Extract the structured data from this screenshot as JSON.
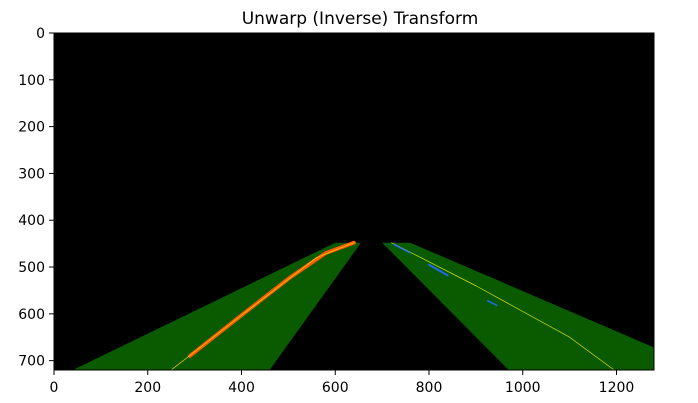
{
  "chart_data": {
    "type": "image",
    "title": "Unwarp (Inverse) Transform",
    "xlabel": "",
    "ylabel": "",
    "xlim": [
      0,
      1280
    ],
    "ylim": [
      720,
      0
    ],
    "y_inverted": true,
    "x_ticks": [
      0,
      200,
      400,
      600,
      800,
      1000,
      1200
    ],
    "y_ticks": [
      0,
      100,
      200,
      300,
      400,
      500,
      600,
      700
    ],
    "grid": false,
    "legend": "none",
    "colors": {
      "background": "#000000",
      "lane_fill": "#0a5a00",
      "left_lane_pixels": "#ff5a00",
      "right_lane_pixels": "#1e6bff",
      "right_lane_line": "#d4e000",
      "left_lane_line": "#ffd000"
    },
    "regions": [
      {
        "name": "left lane region",
        "color_key": "lane_fill",
        "polygon": [
          [
            40,
            720
          ],
          [
            600,
            448
          ],
          [
            655,
            448
          ],
          [
            460,
            720
          ]
        ]
      },
      {
        "name": "right lane region",
        "color_key": "lane_fill",
        "polygon": [
          [
            700,
            448
          ],
          [
            760,
            448
          ],
          [
            1280,
            672
          ],
          [
            1280,
            720
          ],
          [
            970,
            720
          ]
        ]
      }
    ],
    "features": [
      {
        "name": "left lane detected pixels",
        "color_key": "left_lane_pixels",
        "width": 8,
        "points": [
          [
            290,
            690
          ],
          [
            400,
            603
          ],
          [
            500,
            525
          ],
          [
            580,
            470
          ],
          [
            640,
            448
          ]
        ]
      },
      {
        "name": "left lane fit line",
        "color_key": "left_lane_line",
        "width": 1.5,
        "points": [
          [
            250,
            720
          ],
          [
            400,
            603
          ],
          [
            560,
            480
          ],
          [
            640,
            448
          ]
        ]
      },
      {
        "name": "right lane fit line",
        "color_key": "right_lane_line",
        "width": 1.5,
        "points": [
          [
            720,
            448
          ],
          [
            900,
            540
          ],
          [
            1100,
            650
          ],
          [
            1195,
            720
          ]
        ]
      },
      {
        "name": "right lane detected pixels 1",
        "color_key": "right_lane_pixels",
        "width": 3,
        "points": [
          [
            725,
            452
          ],
          [
            760,
            470
          ]
        ]
      },
      {
        "name": "right lane detected pixels 2",
        "color_key": "right_lane_pixels",
        "width": 4,
        "points": [
          [
            800,
            495
          ],
          [
            840,
            518
          ]
        ]
      },
      {
        "name": "right lane detected pixels 3",
        "color_key": "right_lane_pixels",
        "width": 3,
        "points": [
          [
            925,
            572
          ],
          [
            945,
            582
          ]
        ]
      }
    ]
  }
}
